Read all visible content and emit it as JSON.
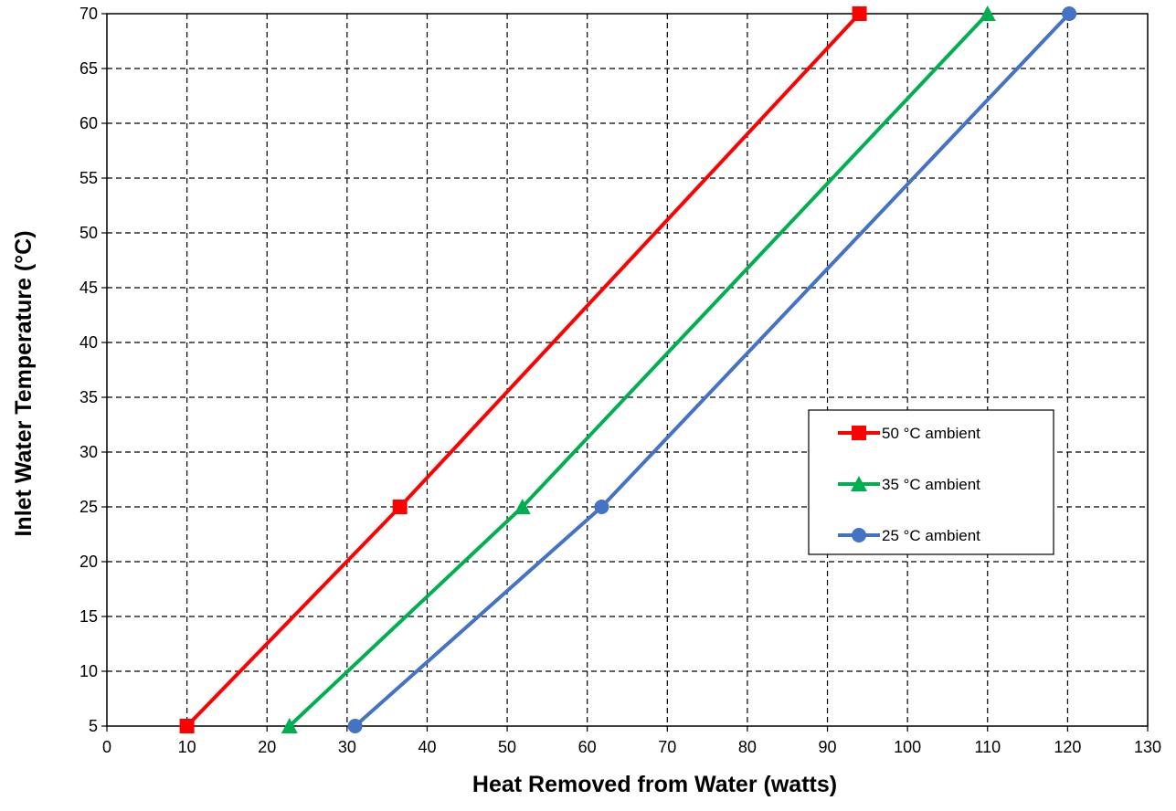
{
  "chart_data": {
    "type": "line",
    "xlabel": "Heat Removed from Water (watts)",
    "ylabel": "Inlet Water Temperature (°C)",
    "xlim": [
      0,
      130
    ],
    "ylim": [
      5,
      70
    ],
    "xticks": [
      0,
      10,
      20,
      30,
      40,
      50,
      60,
      70,
      80,
      90,
      100,
      110,
      120,
      130
    ],
    "yticks": [
      5,
      10,
      15,
      20,
      25,
      30,
      35,
      40,
      45,
      50,
      55,
      60,
      65,
      70
    ],
    "grid": true,
    "legend_position": "right-middle",
    "series": [
      {
        "name": "50 °C ambient",
        "color": "#ff0000",
        "marker": "square",
        "x": [
          10,
          36.6,
          94
        ],
        "y": [
          5,
          25,
          70
        ]
      },
      {
        "name": "35 °C ambient",
        "color": "#00b050",
        "marker": "triangle",
        "x": [
          22.8,
          51.9,
          110
        ],
        "y": [
          5,
          25,
          70
        ]
      },
      {
        "name": "25 °C ambient",
        "color": "#4472c4",
        "marker": "circle",
        "x": [
          31,
          61.8,
          120.2
        ],
        "y": [
          5,
          25,
          70
        ]
      }
    ]
  }
}
